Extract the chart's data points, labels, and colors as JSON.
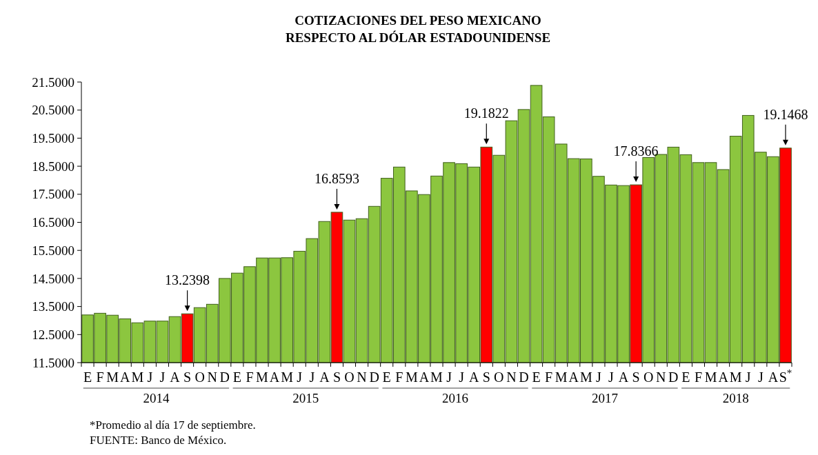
{
  "chart_data": {
    "type": "bar",
    "title": "COTIZACIONES DEL PESO MEXICANO\nRESPECTO AL DÓLAR ESTADOUNIDENSE",
    "categories": [
      "E",
      "F",
      "M",
      "A",
      "M",
      "J",
      "J",
      "A",
      "S",
      "O",
      "N",
      "D",
      "E",
      "F",
      "M",
      "A",
      "M",
      "J",
      "J",
      "A",
      "S",
      "O",
      "N",
      "D",
      "E",
      "F",
      "M",
      "A",
      "M",
      "J",
      "J",
      "A",
      "S",
      "O",
      "N",
      "D",
      "E",
      "F",
      "M",
      "A",
      "M",
      "J",
      "J",
      "A",
      "S",
      "O",
      "N",
      "D",
      "E",
      "F",
      "M",
      "A",
      "M",
      "J",
      "J",
      "A",
      "S$^{*}$"
    ],
    "values": [
      13.2,
      13.26,
      13.19,
      13.06,
      12.92,
      12.98,
      12.98,
      13.14,
      13.2398,
      13.46,
      13.58,
      14.5,
      14.69,
      14.92,
      15.23,
      15.23,
      15.24,
      15.47,
      15.92,
      16.53,
      16.8593,
      16.58,
      16.63,
      17.07,
      18.07,
      18.47,
      17.62,
      17.49,
      18.15,
      18.63,
      18.59,
      18.47,
      19.1822,
      18.89,
      20.12,
      20.52,
      21.38,
      20.26,
      19.29,
      18.77,
      18.76,
      18.14,
      17.83,
      17.81,
      17.8366,
      18.81,
      18.92,
      19.18,
      18.91,
      18.63,
      18.63,
      18.38,
      19.57,
      20.31,
      19.0,
      18.84,
      19.1468
    ],
    "colors": [
      "#8cc63f",
      "#8cc63f",
      "#8cc63f",
      "#8cc63f",
      "#8cc63f",
      "#8cc63f",
      "#8cc63f",
      "#8cc63f",
      "#ff0000",
      "#8cc63f",
      "#8cc63f",
      "#8cc63f",
      "#8cc63f",
      "#8cc63f",
      "#8cc63f",
      "#8cc63f",
      "#8cc63f",
      "#8cc63f",
      "#8cc63f",
      "#8cc63f",
      "#ff0000",
      "#8cc63f",
      "#8cc63f",
      "#8cc63f",
      "#8cc63f",
      "#8cc63f",
      "#8cc63f",
      "#8cc63f",
      "#8cc63f",
      "#8cc63f",
      "#8cc63f",
      "#8cc63f",
      "#ff0000",
      "#8cc63f",
      "#8cc63f",
      "#8cc63f",
      "#8cc63f",
      "#8cc63f",
      "#8cc63f",
      "#8cc63f",
      "#8cc63f",
      "#8cc63f",
      "#8cc63f",
      "#8cc63f",
      "#ff0000",
      "#8cc63f",
      "#8cc63f",
      "#8cc63f",
      "#8cc63f",
      "#8cc63f",
      "#8cc63f",
      "#8cc63f",
      "#8cc63f",
      "#8cc63f",
      "#8cc63f",
      "#8cc63f",
      "#ff0000"
    ],
    "value_labels": [
      null,
      null,
      null,
      null,
      null,
      null,
      null,
      null,
      "13.2398",
      null,
      null,
      null,
      null,
      null,
      null,
      null,
      null,
      null,
      null,
      null,
      "16.8593",
      null,
      null,
      null,
      null,
      null,
      null,
      null,
      null,
      null,
      null,
      null,
      "19.1822",
      null,
      null,
      null,
      null,
      null,
      null,
      null,
      null,
      null,
      null,
      null,
      "17.8366",
      null,
      null,
      null,
      null,
      null,
      null,
      null,
      null,
      null,
      null,
      null,
      "19.1468"
    ],
    "ylim": [
      11.5,
      21.5
    ],
    "yticks": [
      {
        "value": 11.5,
        "label": "11.5000"
      },
      {
        "value": 12.5,
        "label": "12.5000"
      },
      {
        "value": 13.5,
        "label": "13.5000"
      },
      {
        "value": 14.5,
        "label": "14.5000"
      },
      {
        "value": 15.5,
        "label": "15.5000"
      },
      {
        "value": 16.5,
        "label": "16.5000"
      },
      {
        "value": 17.5,
        "label": "17.5000"
      },
      {
        "value": 18.5,
        "label": "18.5000"
      },
      {
        "value": 19.5,
        "label": "19.5000"
      },
      {
        "value": 20.5,
        "label": "20.5000"
      },
      {
        "value": 21.5,
        "label": "21.5000"
      }
    ],
    "grid": false,
    "annotations": [
      {
        "text": "2014"
      },
      {
        "text": "2015"
      },
      {
        "text": "2016"
      },
      {
        "text": "2017"
      },
      {
        "text": "2018"
      },
      "*Promedio al día 17 de septiembre.",
      "FUENTE: Banco de México."
    ]
  }
}
